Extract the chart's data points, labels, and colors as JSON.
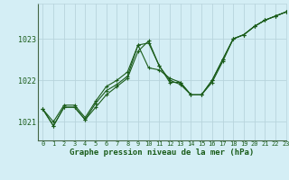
{
  "title": "Graphe pression niveau de la mer (hPa)",
  "background_color": "#d4eef5",
  "grid_color": "#b8d4dc",
  "line_color": "#1a5c1a",
  "xlim": [
    -0.5,
    23
  ],
  "ylim": [
    1020.55,
    1023.85
  ],
  "yticks": [
    1021,
    1022,
    1023
  ],
  "xticks": [
    0,
    1,
    2,
    3,
    4,
    5,
    6,
    7,
    8,
    9,
    10,
    11,
    12,
    13,
    14,
    15,
    16,
    17,
    18,
    19,
    20,
    21,
    22,
    23
  ],
  "series1_y": [
    1021.3,
    1020.9,
    1021.35,
    1021.35,
    1021.05,
    1021.45,
    1021.75,
    1021.9,
    1022.1,
    1022.85,
    1022.3,
    1022.25,
    1022.05,
    1021.95,
    1021.65,
    1021.65,
    1021.95,
    1022.45,
    1023.0,
    1023.1,
    1023.3,
    1023.45,
    1023.55,
    1023.65
  ],
  "series2_y": [
    1021.3,
    1020.9,
    1021.35,
    1021.35,
    1021.05,
    1021.35,
    1021.65,
    1021.85,
    1022.05,
    1022.7,
    1022.95,
    1022.35,
    1021.95,
    1021.95,
    1021.65,
    1021.65,
    1022.0,
    1022.5,
    1023.0,
    1023.1,
    1023.3,
    1023.45,
    1023.55,
    1023.65
  ],
  "series3_y": [
    1021.3,
    1021.0,
    1021.4,
    1021.4,
    1021.1,
    1021.5,
    1021.85,
    1022.0,
    1022.2,
    1022.85,
    1022.9,
    1022.35,
    1022.0,
    1021.9,
    1021.65,
    1021.65,
    1022.0,
    1022.5,
    1023.0,
    1023.1,
    1023.3,
    1023.45,
    1023.55,
    1023.65
  ],
  "tick_fontsize": 5.0,
  "label_fontsize": 6.5,
  "label_fontweight": "bold"
}
